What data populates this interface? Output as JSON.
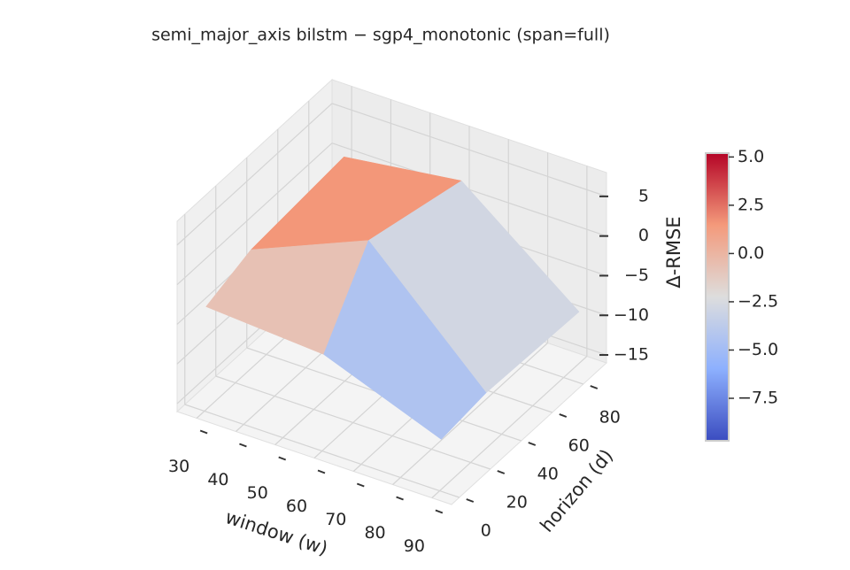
{
  "chart_data": {
    "type": "surface3d",
    "title": "semi_major_axis  bilstm − sgp4_monotonic  (span=full)",
    "x_label": "window (w)",
    "y_label": "horizon (d)",
    "z_label": "Δ-RMSE",
    "x": [
      30,
      60,
      90
    ],
    "y": [
      1,
      30,
      90
    ],
    "z": [
      [
        -3,
        -4,
        -9.7
      ],
      [
        -1,
        5.2,
        -9
      ],
      [
        0,
        2,
        -9.5
      ]
    ],
    "xlim": [
      25,
      95
    ],
    "ylim": [
      -5,
      95
    ],
    "zlim": [
      -16,
      8
    ],
    "xticks": [
      30,
      40,
      50,
      60,
      70,
      80,
      90
    ],
    "yticks": [
      0,
      20,
      40,
      60,
      80
    ],
    "zticks": [
      {
        "value": -15,
        "label": "−15"
      },
      {
        "value": -10,
        "label": "−10"
      },
      {
        "value": -5,
        "label": "−5"
      },
      0,
      5
    ],
    "colormap": "coolwarm",
    "clim": [
      -9.7,
      5.2
    ],
    "colorbar_ticks": [
      {
        "value": -7.5,
        "label": "−7.5"
      },
      {
        "value": -5,
        "label": "−5.0"
      },
      {
        "value": -2.5,
        "label": "−2.5"
      },
      {
        "value": 0,
        "label": "0.0"
      },
      {
        "value": 2.5,
        "label": "2.5"
      },
      {
        "value": 5,
        "label": "5.0"
      }
    ],
    "grid": true
  }
}
